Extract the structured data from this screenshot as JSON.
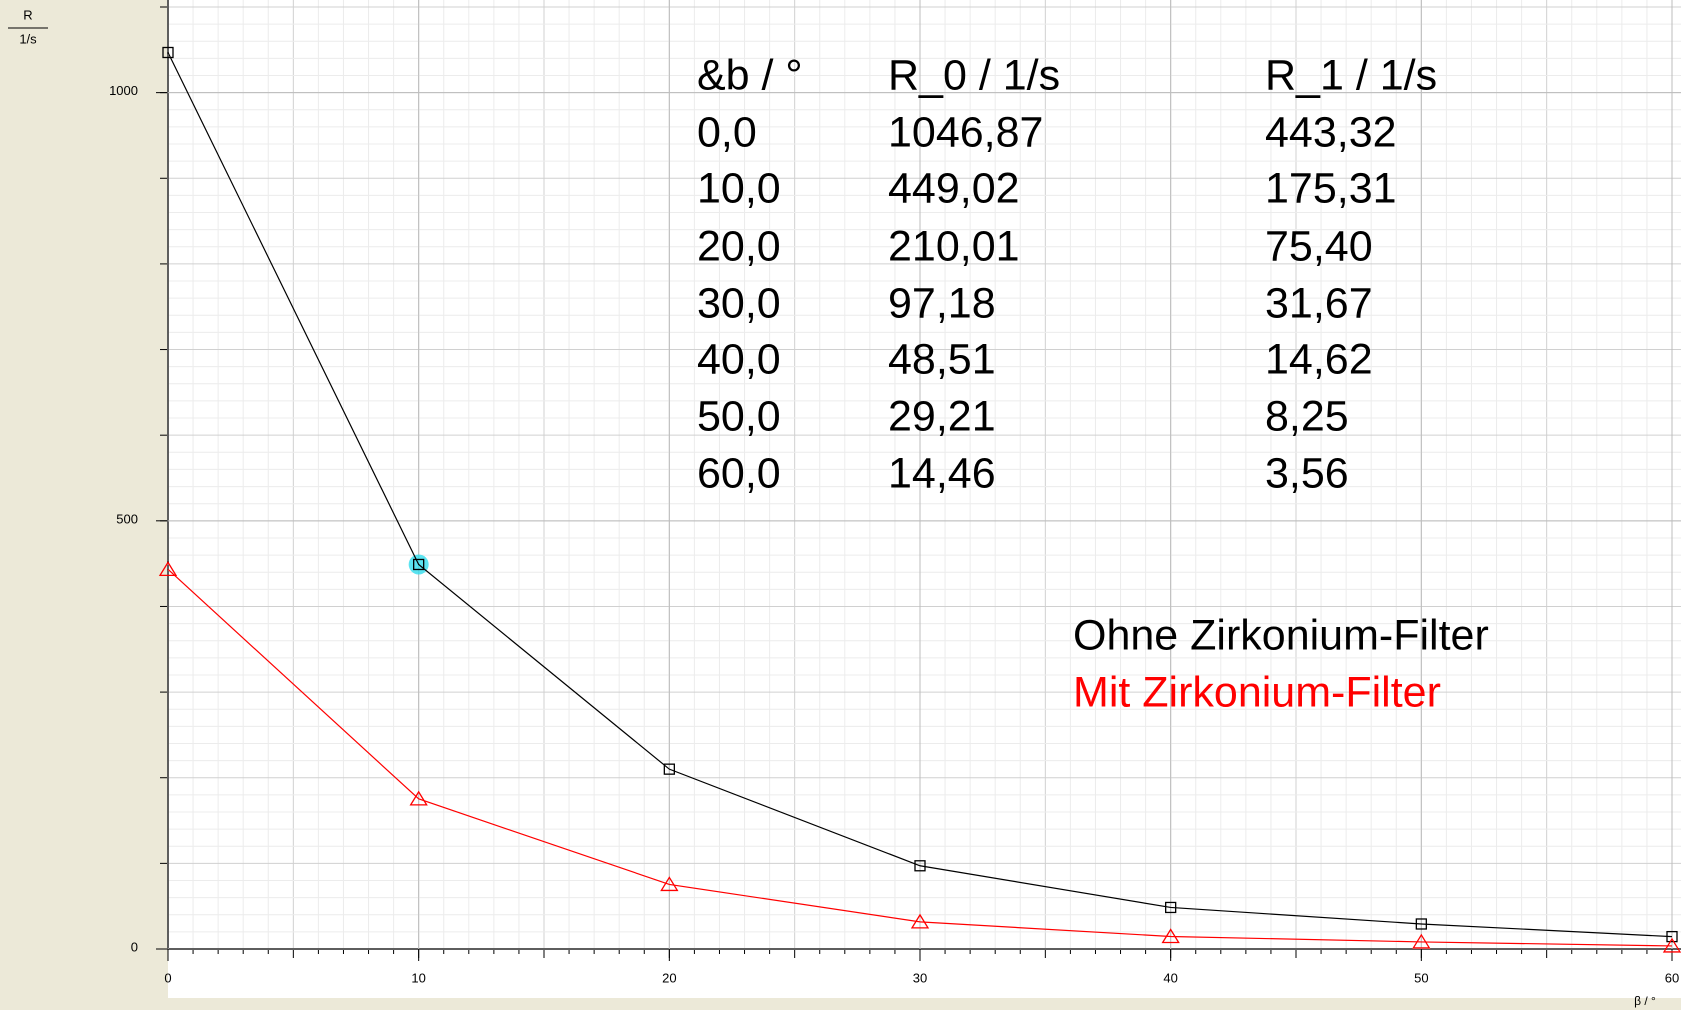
{
  "chart_data": {
    "type": "line",
    "ylabel": "R",
    "yunit": "1/s",
    "xlabel": "β / °",
    "x": [
      0,
      10,
      20,
      30,
      40,
      50,
      60
    ],
    "series": [
      {
        "name": "Ohne Zirkonium-Filter",
        "color": "#000000",
        "marker": "square",
        "values": [
          1046.87,
          449.02,
          210.01,
          97.18,
          48.51,
          29.21,
          14.46
        ]
      },
      {
        "name": "Mit Zirkonium-Filter",
        "color": "#ff0000",
        "marker": "triangle",
        "values": [
          443.32,
          175.31,
          75.4,
          31.67,
          14.62,
          8.25,
          3.56
        ]
      }
    ],
    "xlim": [
      0,
      60
    ],
    "xticks": [
      0,
      10,
      20,
      30,
      40,
      50,
      60
    ],
    "ylim": [
      0,
      1100
    ],
    "yticks": [
      0,
      500,
      1000
    ],
    "grid": true,
    "table": {
      "header": [
        "&b / °",
        "R_0 / 1/s",
        "R_1 / 1/s"
      ],
      "rows": [
        [
          "0,0",
          "1046,87",
          "443,32"
        ],
        [
          "10,0",
          "449,02",
          "175,31"
        ],
        [
          "20,0",
          "210,01",
          "75,40"
        ],
        [
          "30,0",
          "97,18",
          "31,67"
        ],
        [
          "40,0",
          "48,51",
          "14,62"
        ],
        [
          "50,0",
          "29,21",
          "8,25"
        ],
        [
          "60,0",
          "14,46",
          "3,56"
        ]
      ]
    }
  }
}
